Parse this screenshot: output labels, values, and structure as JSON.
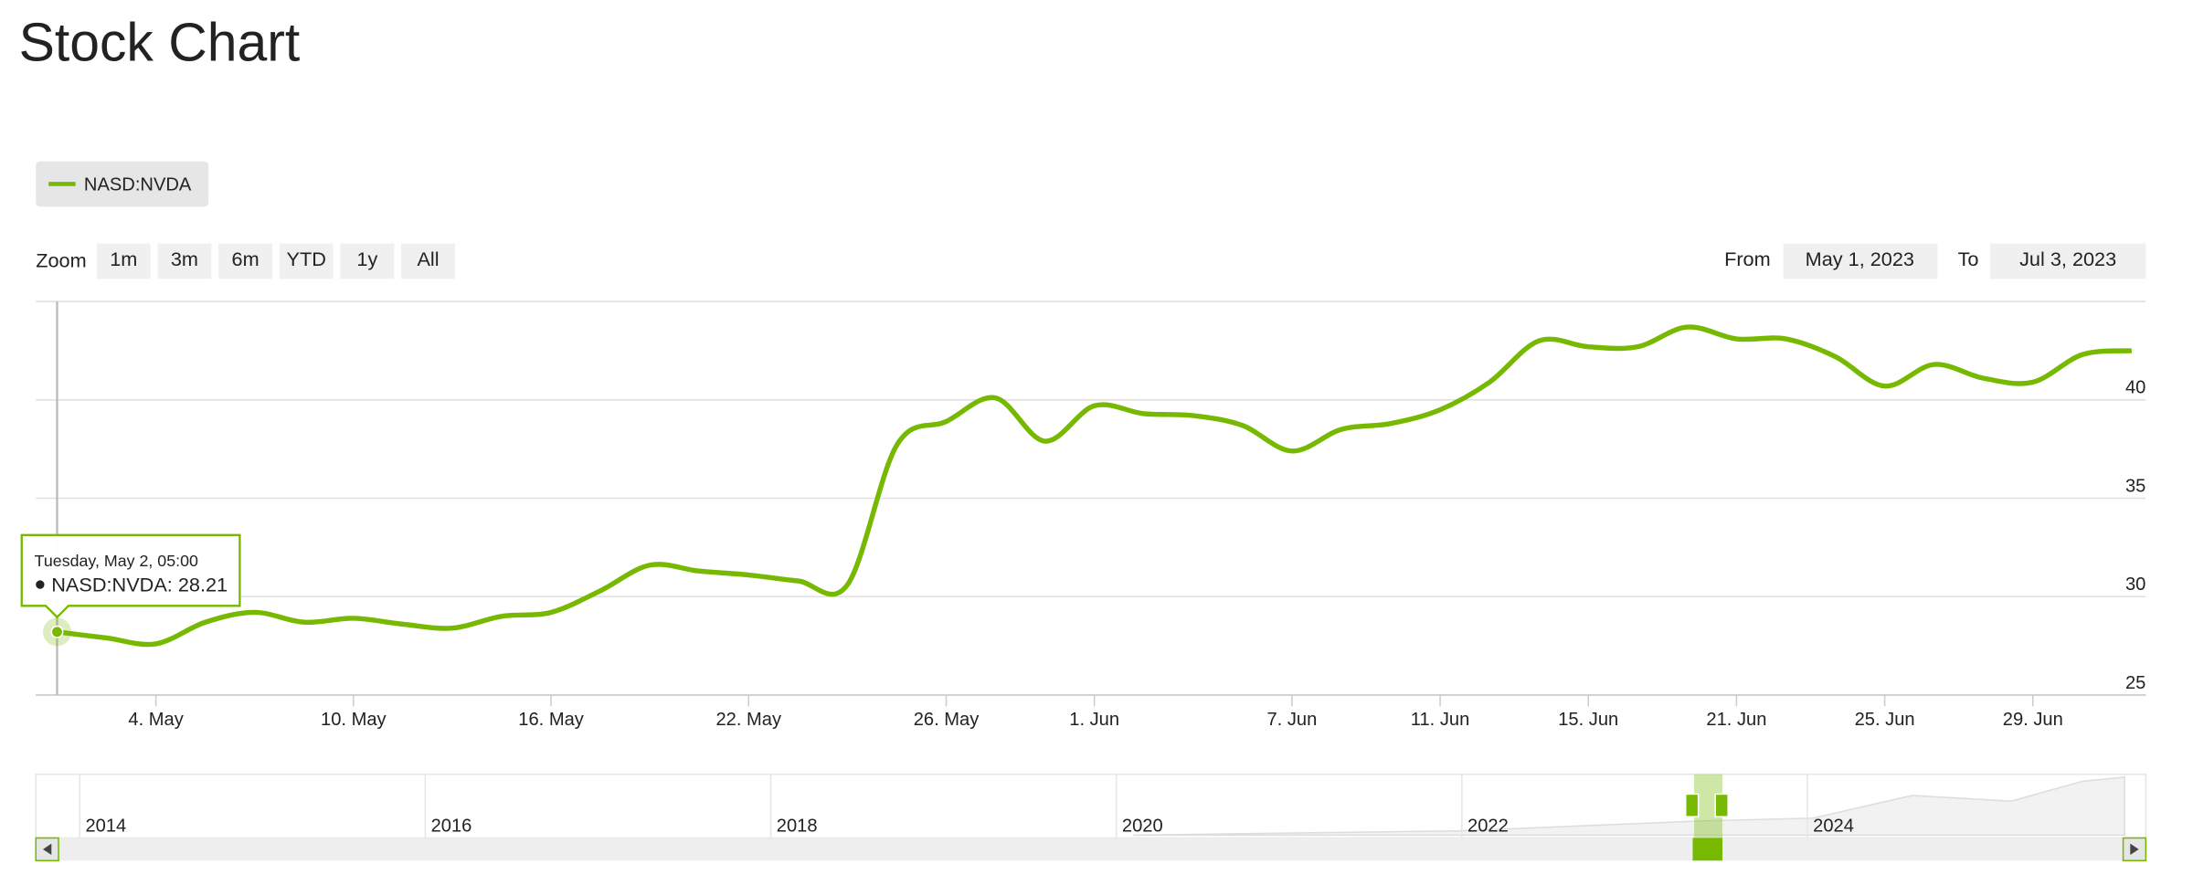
{
  "chart_data": {
    "type": "line",
    "title": "Stock Chart",
    "categories": [
      null,
      null,
      "4. May",
      null,
      null,
      null,
      "10. May",
      null,
      null,
      null,
      "16. May",
      null,
      null,
      null,
      "22. May",
      null,
      null,
      null,
      "26. May",
      null,
      null,
      "1. Jun",
      null,
      null,
      null,
      "7. Jun",
      null,
      null,
      "11. Jun",
      null,
      null,
      "15. Jun",
      null,
      null,
      "21. Jun",
      null,
      null,
      "25. Jun",
      null,
      null,
      "29. Jun",
      null,
      null
    ],
    "series": [
      {
        "name": "NASD:NVDA",
        "color": "#76b900",
        "values": [
          28.21,
          27.9,
          27.6,
          28.7,
          29.2,
          28.7,
          28.9,
          28.6,
          28.4,
          29.0,
          29.2,
          30.3,
          31.6,
          31.3,
          31.1,
          30.8,
          30.6,
          37.7,
          38.9,
          40.1,
          37.9,
          39.7,
          39.3,
          39.2,
          38.7,
          37.4,
          38.5,
          38.8,
          39.5,
          40.9,
          43.0,
          42.7,
          42.7,
          43.7,
          43.1,
          43.1,
          42.2,
          40.7,
          41.8,
          41.1,
          40.9,
          42.3,
          42.5
        ]
      }
    ],
    "ylim": [
      25,
      45
    ],
    "yticks": [
      25,
      30,
      35,
      40
    ],
    "grid": true,
    "tooltip": {
      "header": "Tuesday, May 2, 05:00",
      "text": "NASD:NVDA: 28.21"
    }
  },
  "controls": {
    "zoom_label": "Zoom",
    "zoom_buttons": [
      "1m",
      "3m",
      "6m",
      "YTD",
      "1y",
      "All"
    ],
    "from_label": "From",
    "from": "May 1, 2023",
    "to_label": "To",
    "to": "Jul 3, 2023"
  },
  "navigator": {
    "years": [
      "2014",
      "2016",
      "2018",
      "2020",
      "2022",
      "2024"
    ]
  }
}
